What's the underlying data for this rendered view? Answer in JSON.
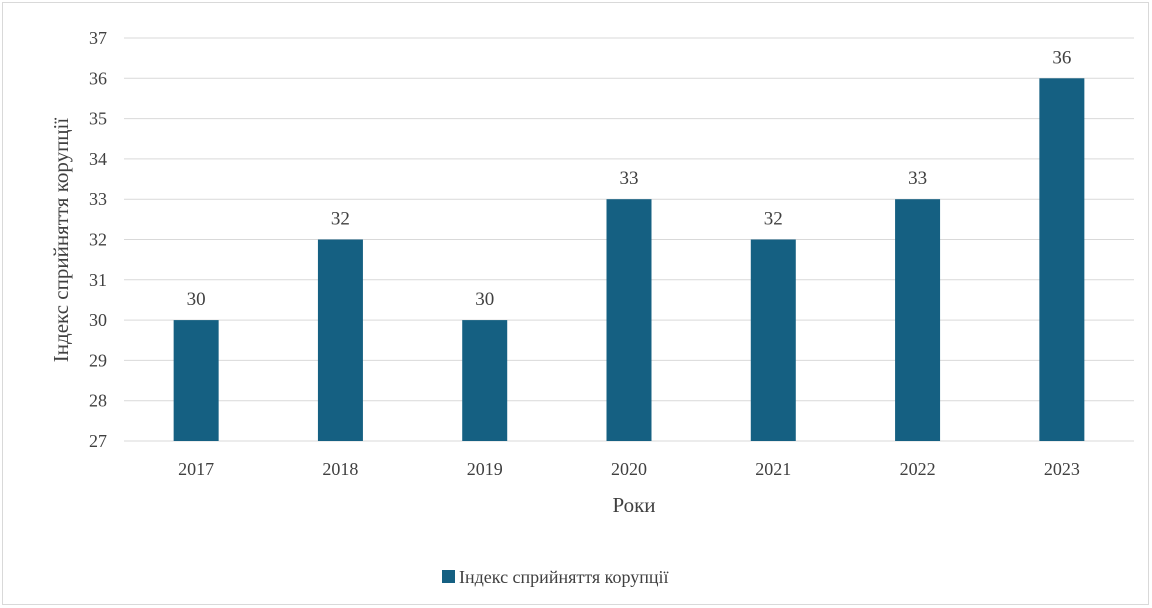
{
  "chart_data": {
    "type": "bar",
    "categories": [
      "2017",
      "2018",
      "2019",
      "2020",
      "2021",
      "2022",
      "2023"
    ],
    "series": [
      {
        "name": "Індекс сприйняття корупції",
        "values": [
          30,
          32,
          30,
          33,
          32,
          33,
          36
        ]
      }
    ],
    "title": "",
    "xlabel": "Роки",
    "ylabel": "Індекс сприйняття корупції",
    "ylim": [
      27,
      37
    ],
    "ytick_step": 1,
    "grid": true,
    "legend_position": "bottom",
    "data_labels": true,
    "colors": {
      "bar": "#156082",
      "grid": "#d9d9d9",
      "text": "#404040"
    }
  }
}
